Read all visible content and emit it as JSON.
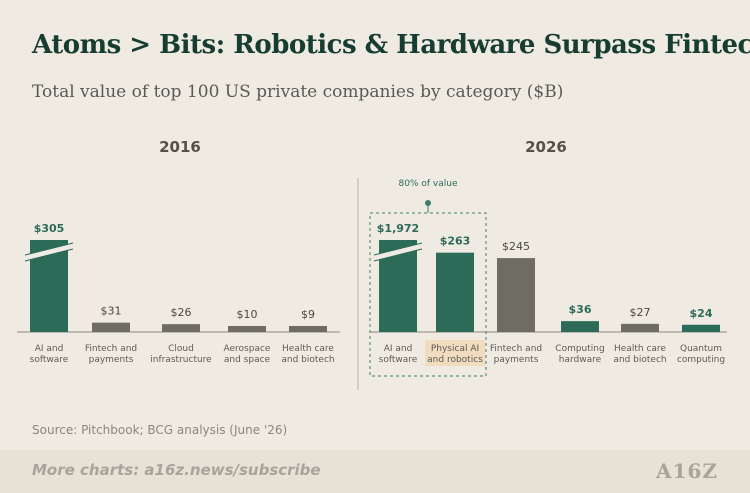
{
  "title": "Atoms > Bits: Robotics & Hardware Surpass Fintech",
  "subtitle": "Total value of top 100 US private companies by category ($B)",
  "source": "Source: Pitchbook; BCG analysis (June '26)",
  "footer": {
    "text": "More charts: a16z.news/subscribe",
    "logo": "A16Z"
  },
  "colors": {
    "green": "#2d6b59",
    "gray": "#6f6c64",
    "highlight": "#f1dcc0",
    "dashed": "#3f7d6a"
  },
  "chart_data": [
    {
      "type": "bar",
      "title": "2016",
      "categories": [
        "AI and software",
        "Fintech and payments",
        "Cloud infrastructure",
        "Aerospace and space",
        "Health care and biotech"
      ],
      "labels": [
        [
          "AI and",
          "software"
        ],
        [
          "Fintech and",
          "payments"
        ],
        [
          "Cloud",
          "infrastructure"
        ],
        [
          "Aerospace",
          "and space"
        ],
        [
          "Health care",
          "and biotech"
        ]
      ],
      "values": [
        305,
        31,
        26,
        10,
        9
      ],
      "value_labels": [
        "$305",
        "$31",
        "$26",
        "$10",
        "$9"
      ],
      "colors": [
        "green",
        "gray",
        "gray",
        "gray",
        "gray"
      ],
      "axis_break": [
        true,
        false,
        false,
        false,
        false
      ]
    },
    {
      "type": "bar",
      "title": "2026",
      "categories": [
        "AI and software",
        "Physical AI and robotics",
        "Fintech and payments",
        "Computing hardware",
        "Health care and biotech",
        "Quantum computing"
      ],
      "labels": [
        [
          "AI and",
          "software"
        ],
        [
          "Physical AI",
          "and robotics"
        ],
        [
          "Fintech and",
          "payments"
        ],
        [
          "Computing",
          "hardware"
        ],
        [
          "Health care",
          "and biotech"
        ],
        [
          "Quantum",
          "computing"
        ]
      ],
      "values": [
        1972,
        263,
        245,
        36,
        27,
        24
      ],
      "value_labels": [
        "$1,972",
        "$263",
        "$245",
        "$36",
        "$27",
        "$24"
      ],
      "colors": [
        "green",
        "green",
        "gray",
        "green",
        "gray",
        "green"
      ],
      "axis_break": [
        true,
        false,
        false,
        false,
        false,
        false
      ],
      "annotation": "80% of value"
    }
  ]
}
